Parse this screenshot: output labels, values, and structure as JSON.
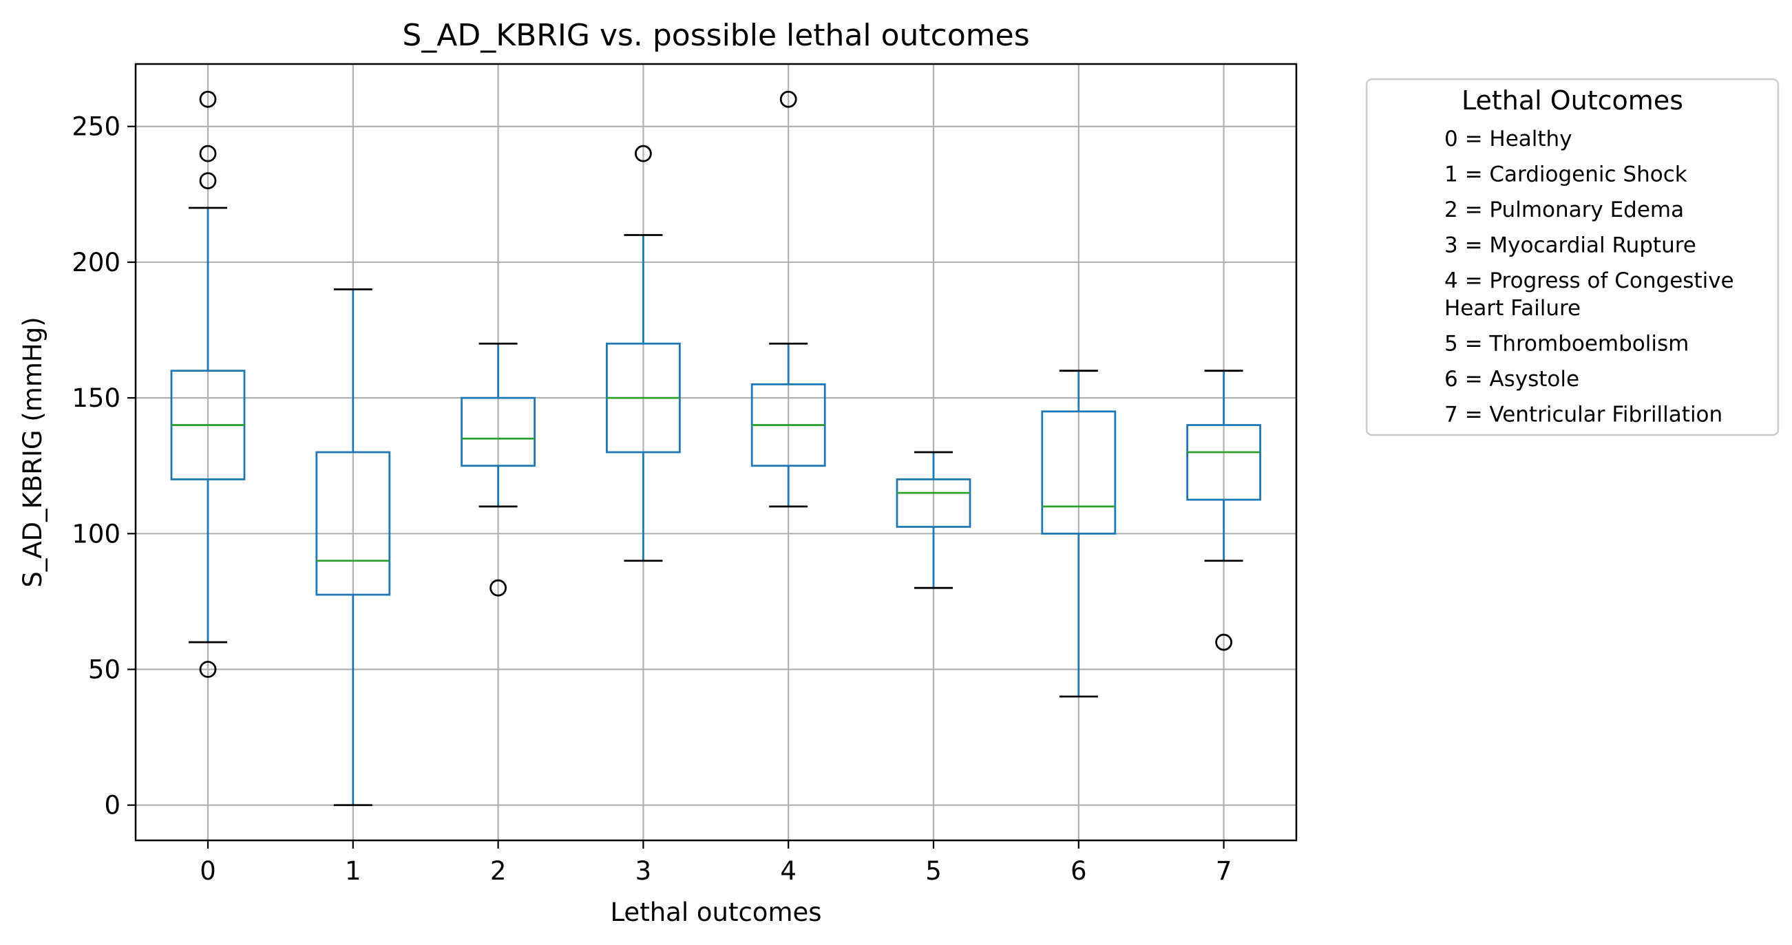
{
  "chart_data": {
    "type": "boxplot",
    "title": "S_AD_KBRIG vs. possible lethal outcomes",
    "xlabel": "Lethal outcomes",
    "ylabel": "S_AD_KBRIG (mmHg)",
    "ylim": [
      -13,
      273
    ],
    "yticks": [
      0,
      50,
      100,
      150,
      200,
      250
    ],
    "grid": true,
    "categories": [
      "0",
      "1",
      "2",
      "3",
      "4",
      "5",
      "6",
      "7"
    ],
    "boxes": [
      {
        "category": "0",
        "whisker_low": 60,
        "q1": 120,
        "median": 140,
        "q3": 160,
        "whisker_high": 220,
        "outliers": [
          50,
          230,
          240,
          260
        ]
      },
      {
        "category": "1",
        "whisker_low": 0,
        "q1": 77.5,
        "median": 90,
        "q3": 130,
        "whisker_high": 190,
        "outliers": []
      },
      {
        "category": "2",
        "whisker_low": 110,
        "q1": 125,
        "median": 135,
        "q3": 150,
        "whisker_high": 170,
        "outliers": [
          80
        ]
      },
      {
        "category": "3",
        "whisker_low": 90,
        "q1": 130,
        "median": 150,
        "q3": 170,
        "whisker_high": 210,
        "outliers": [
          240
        ]
      },
      {
        "category": "4",
        "whisker_low": 110,
        "q1": 125,
        "median": 140,
        "q3": 155,
        "whisker_high": 170,
        "outliers": [
          260
        ]
      },
      {
        "category": "5",
        "whisker_low": 80,
        "q1": 102.5,
        "median": 115,
        "q3": 120,
        "whisker_high": 130,
        "outliers": []
      },
      {
        "category": "6",
        "whisker_low": 40,
        "q1": 100,
        "median": 110,
        "q3": 145,
        "whisker_high": 160,
        "outliers": []
      },
      {
        "category": "7",
        "whisker_low": 90,
        "q1": 112.5,
        "median": 130,
        "q3": 140,
        "whisker_high": 160,
        "outliers": [
          60
        ]
      }
    ],
    "legend": {
      "title": "Lethal Outcomes",
      "placement": "outside-right",
      "entries": [
        [
          "0 = Healthy"
        ],
        [
          "1 = Cardiogenic Shock"
        ],
        [
          "2 = Pulmonary Edema"
        ],
        [
          "3 = Myocardial Rupture"
        ],
        [
          "4 = Progress of Congestive",
          "Heart Failure"
        ],
        [
          "5 = Thromboembolism"
        ],
        [
          "6 = Asystole"
        ],
        [
          "7 = Ventricular Fibrillation"
        ]
      ]
    },
    "colors": {
      "box": "#1f77b4",
      "median": "#2ca02c",
      "grid": "#b0b0b0",
      "outlier": "#000000"
    }
  }
}
